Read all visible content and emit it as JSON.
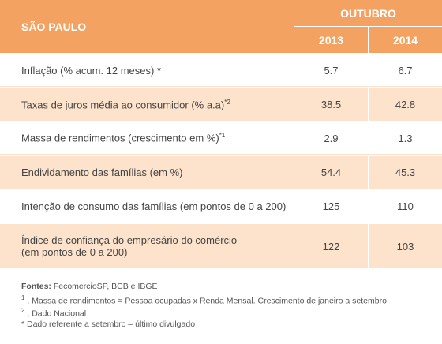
{
  "header": {
    "region": "SÃO PAULO",
    "period": "OUTUBRO",
    "years": [
      "2013",
      "2014"
    ]
  },
  "table": {
    "rows": [
      {
        "label": [
          "Inflação (% acum. 12 meses) *"
        ],
        "values": [
          "5.7",
          "6.7"
        ]
      },
      {
        "label": [
          "Taxas de juros média ao consumidor (%  a.a)"
        ],
        "note": "*2",
        "values": [
          "38.5",
          "42.8"
        ]
      },
      {
        "label": [
          "Massa de rendimentos (crescimento em %)"
        ],
        "note": "*1",
        "values": [
          "2.9",
          "1.3"
        ]
      },
      {
        "label": [
          "Endividamento das famílias (em %)"
        ],
        "values": [
          "54.4",
          "45.3"
        ]
      },
      {
        "label": [
          "Intenção de consumo das famílias (em pontos de 0  a 200)"
        ],
        "values": [
          "125",
          "110"
        ]
      },
      {
        "label": [
          "Índice de confiança do empresário do comércio",
          "(em pontos de 0 a 200)"
        ],
        "values": [
          "122",
          "103"
        ]
      }
    ]
  },
  "footnotes": {
    "sources": {
      "label": "Fontes:",
      "text": " FecomercioSP, BCB e IBGE"
    },
    "notes": [
      {
        "marker": "1",
        "text": " . Massa de rendimentos = Pessoa ocupadas x Renda Mensal. Crescimento de janeiro a setembro"
      },
      {
        "marker": "2",
        "text": " . Dado Nacional"
      },
      {
        "text": "* Dado referente a setembro – último divulgado"
      }
    ]
  }
}
